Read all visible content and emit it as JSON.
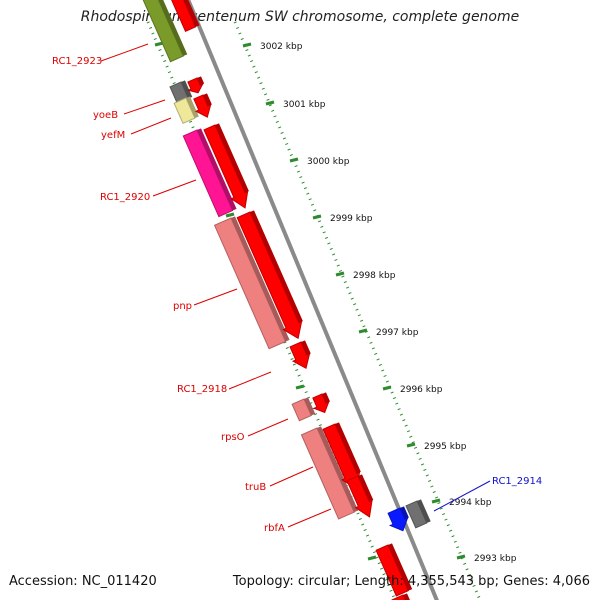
{
  "title": "Rhodospirillum centenum SW chromosome, complete genome",
  "footer": {
    "accession": "Accession: NC_011420",
    "topology": "Topology: circular; Length: 4,355,543 bp; Genes: 4,066"
  },
  "ruler_ticks": [
    {
      "label": "3002 kbp"
    },
    {
      "label": "3001 kbp"
    },
    {
      "label": "3000 kbp"
    },
    {
      "label": "2999 kbp"
    },
    {
      "label": "2998 kbp"
    },
    {
      "label": "2997 kbp"
    },
    {
      "label": "2996 kbp"
    },
    {
      "label": "2995 kbp"
    },
    {
      "label": "2994 kbp"
    },
    {
      "label": "2993 kbp"
    }
  ],
  "gene_labels": [
    {
      "text": "RC1_2923",
      "color": "#dd0000"
    },
    {
      "text": "yoeB",
      "color": "#dd0000"
    },
    {
      "text": "yefM",
      "color": "#dd0000"
    },
    {
      "text": "RC1_2920",
      "color": "#dd0000"
    },
    {
      "text": "pnp",
      "color": "#dd0000"
    },
    {
      "text": "RC1_2918",
      "color": "#dd0000"
    },
    {
      "text": "rpsO",
      "color": "#dd0000"
    },
    {
      "text": "truB",
      "color": "#dd0000"
    },
    {
      "text": "rbfA",
      "color": "#dd0000"
    },
    {
      "text": "RC1_2914",
      "color": "#1111cc"
    }
  ],
  "colors": {
    "backbone": "#8a8a8a",
    "ruler": "#2e8b2e",
    "cds_red": "#ff0000",
    "gene_olive": "#7a9a2a",
    "gene_grey": "#707070",
    "gene_yellow": "#efe89a",
    "gene_magenta": "#ff1493",
    "gene_salmon": "#ef8080",
    "gene_blue": "#0a1aff"
  }
}
